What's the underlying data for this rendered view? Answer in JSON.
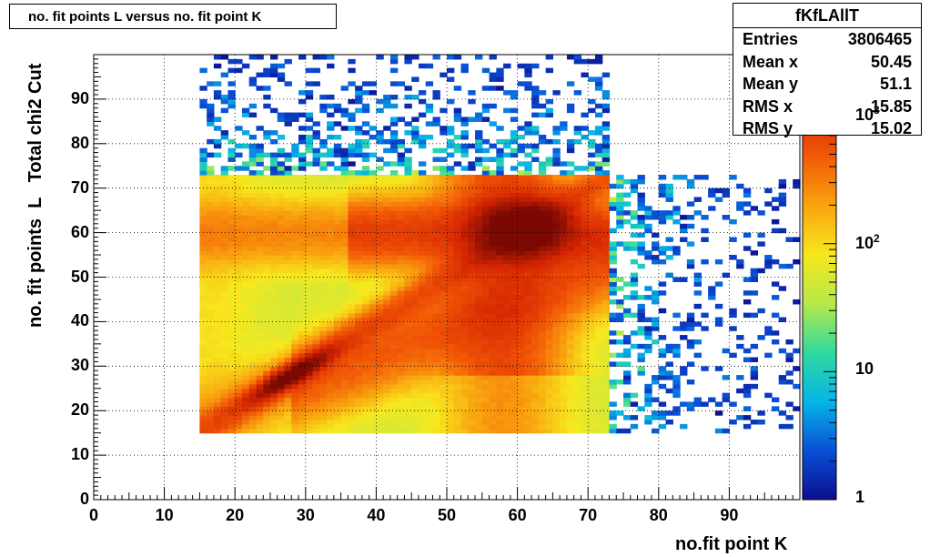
{
  "title": "no. fit points L versus no. fit point K",
  "stats": {
    "name": "fKfLAllT",
    "rows": [
      {
        "label": "Entries",
        "value": "3806465"
      },
      {
        "label": "Mean x",
        "value": "50.45"
      },
      {
        "label": "Mean y",
        "value": "51.1"
      },
      {
        "label": "RMS x",
        "value": "15.85"
      },
      {
        "label": "RMS y",
        "value": "15.02"
      }
    ]
  },
  "chart_data": {
    "type": "heatmap",
    "title": "no. fit points L versus no. fit point K",
    "xlabel": "no.fit point K",
    "ylabel": "no. fit points  L   Total chi2 Cut",
    "xlim": [
      0,
      100
    ],
    "ylim": [
      0,
      100
    ],
    "x_ticks": [
      "0",
      "10",
      "20",
      "30",
      "40",
      "50",
      "60",
      "70",
      "80",
      "90"
    ],
    "y_ticks": [
      "0",
      "10",
      "20",
      "30",
      "40",
      "50",
      "60",
      "70",
      "80",
      "90"
    ],
    "z_scale": "log",
    "z_range": [
      1,
      3000
    ],
    "z_ticks": [
      {
        "value": 1,
        "base": "1",
        "exp": ""
      },
      {
        "value": 10,
        "base": "10",
        "exp": ""
      },
      {
        "value": 100,
        "base": "10",
        "exp": "2"
      },
      {
        "value": 1000,
        "base": "10",
        "exp": "3"
      }
    ],
    "grid": true,
    "bin_width": 1,
    "dense_region": {
      "x": [
        15,
        73
      ],
      "y": [
        15,
        73
      ]
    },
    "features": [
      {
        "type": "diagonal_ridge",
        "center": [
          28,
          28
        ],
        "peak": 3000
      },
      {
        "type": "hotspot",
        "center": [
          61,
          61
        ],
        "peak": 3500
      },
      {
        "type": "horizontal_band",
        "y": 60,
        "x_from": 38,
        "level": 700
      },
      {
        "type": "vertical_band",
        "x": 58,
        "y_from": 28,
        "level": 500
      },
      {
        "type": "arc",
        "from": [
          30,
          25
        ],
        "to": [
          70,
          50
        ],
        "level": 450
      }
    ],
    "sparse_regions": [
      {
        "x": [
          15,
          73
        ],
        "y": [
          73,
          100
        ],
        "density": 0.5
      },
      {
        "x": [
          73,
          100
        ],
        "y": [
          15,
          73
        ],
        "density": 0.45
      }
    ],
    "palette": [
      "#0b0f8f",
      "#0a4fd6",
      "#05b5e8",
      "#30d9a0",
      "#b6e94a",
      "#f7e81e",
      "#f9a40f",
      "#f25a07",
      "#d62602",
      "#7a0903"
    ]
  }
}
